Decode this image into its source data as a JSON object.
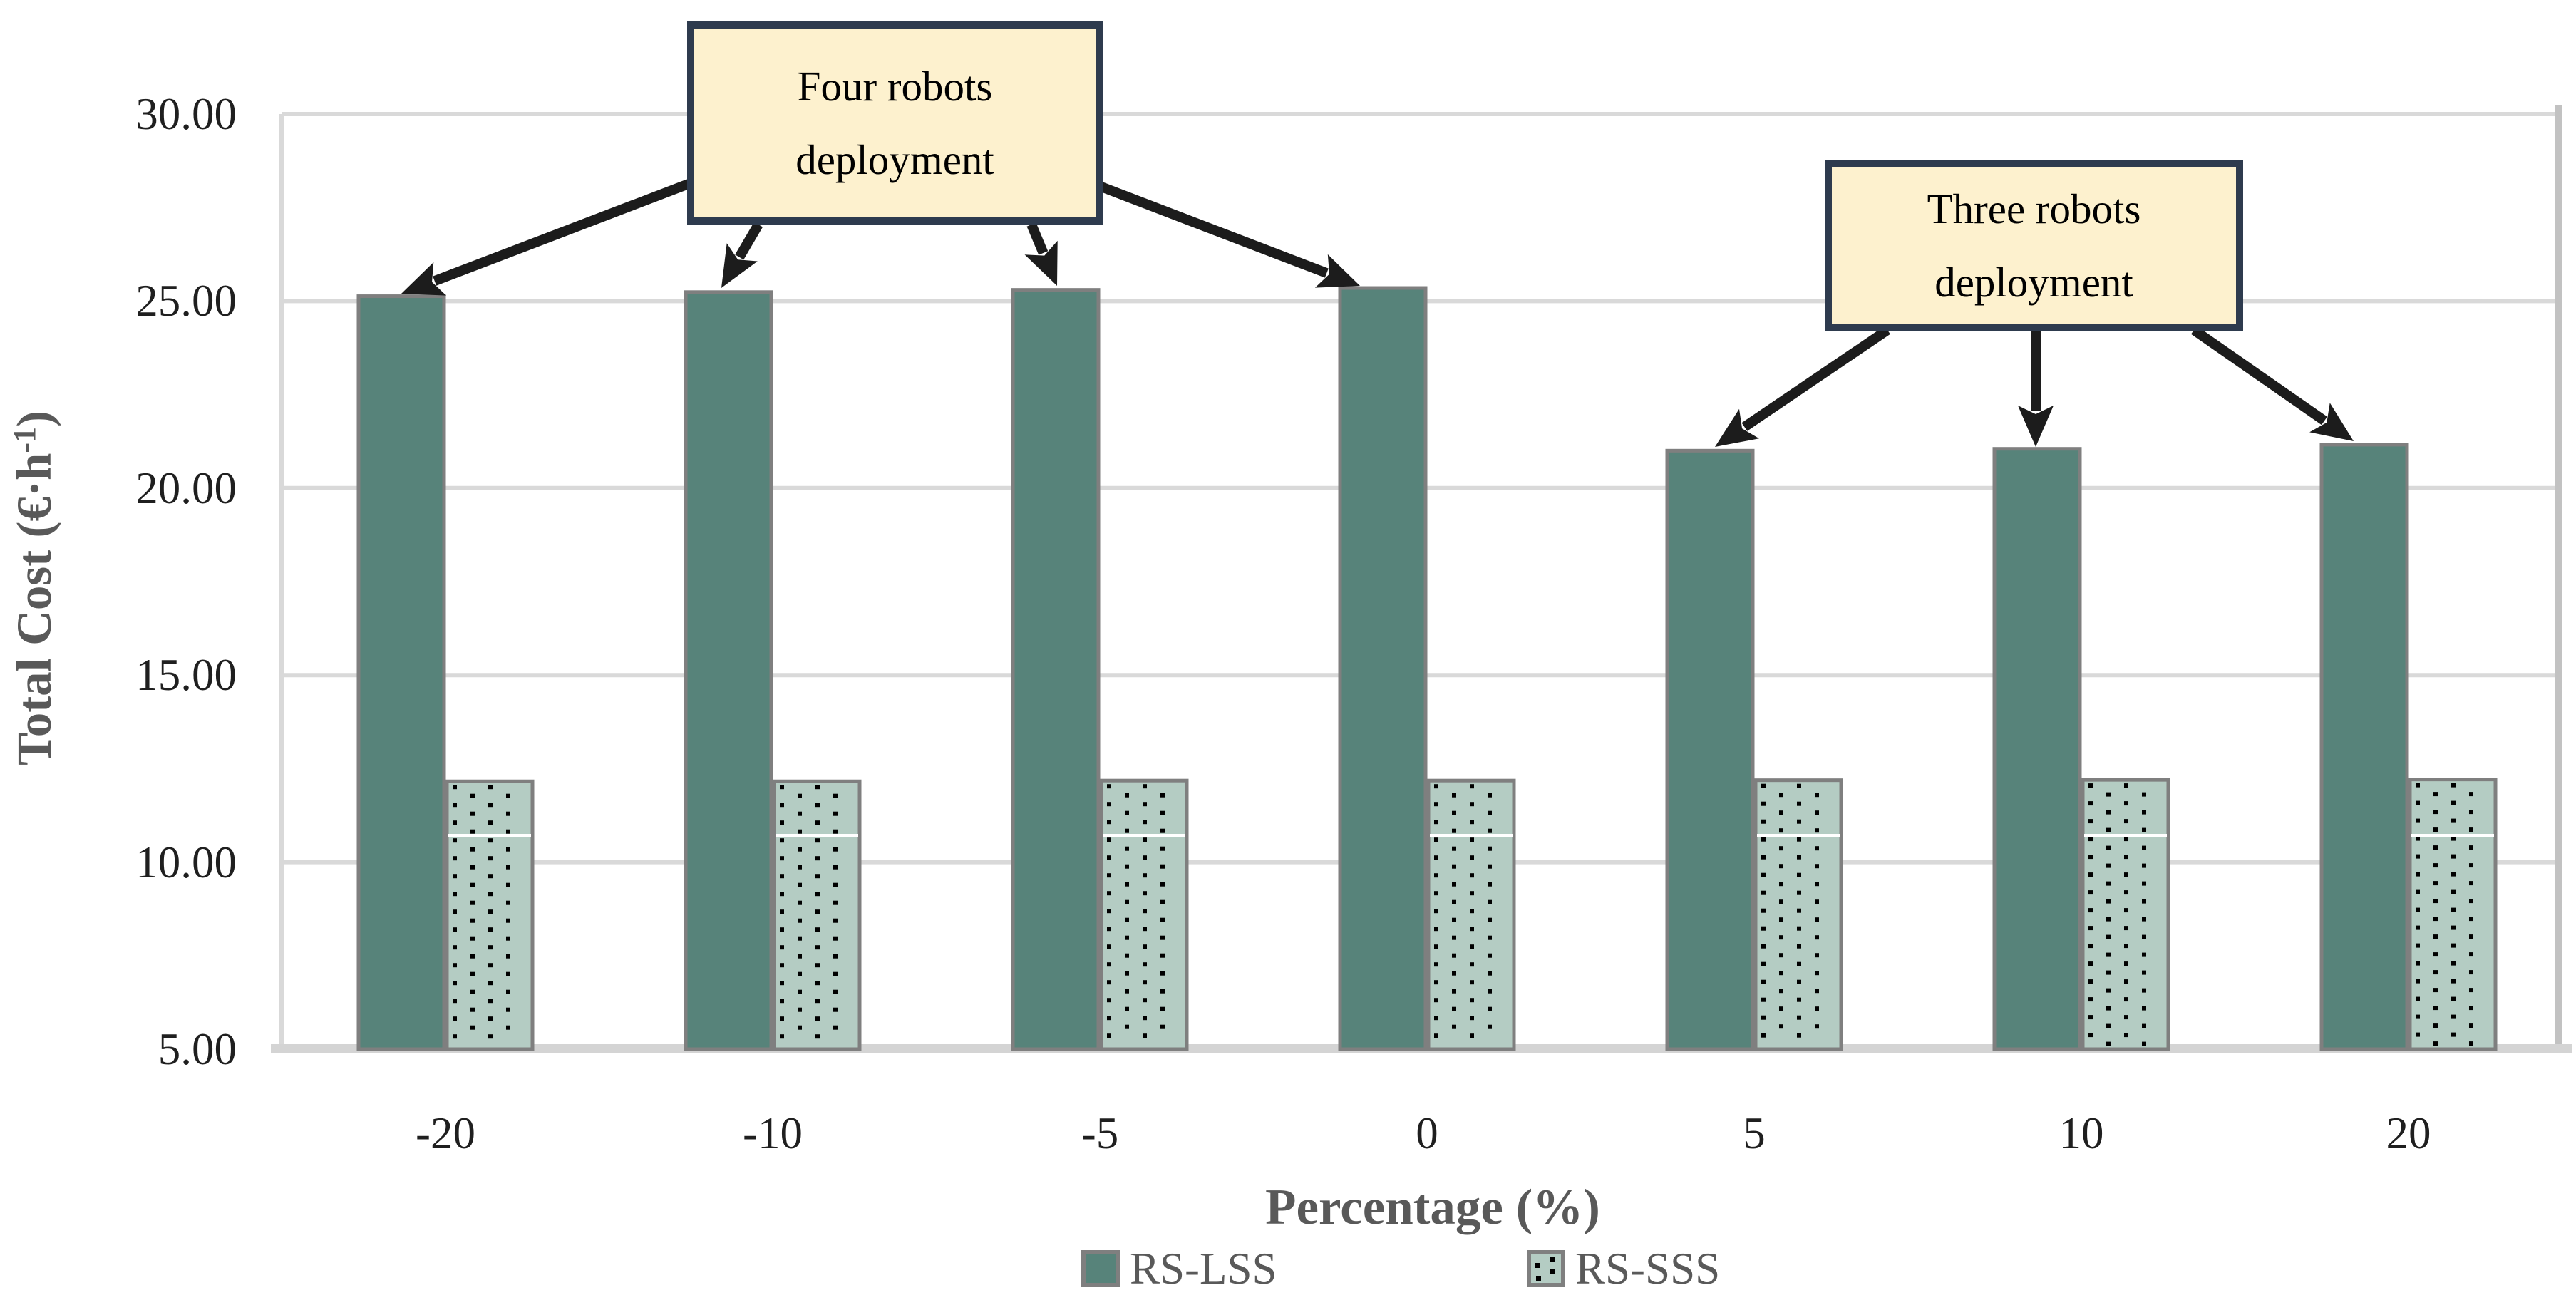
{
  "chart_data": {
    "type": "bar",
    "title": "",
    "categories": [
      -20,
      -10,
      -5,
      0,
      5,
      10,
      20
    ],
    "series": [
      {
        "name": "RS-LSS",
        "values": [
          25.13,
          25.24,
          25.3,
          25.35,
          21.0,
          21.05,
          21.16
        ],
        "style": "solid"
      },
      {
        "name": "RS-SSS",
        "values": [
          12.16,
          12.16,
          12.18,
          12.18,
          12.19,
          12.2,
          12.21
        ],
        "style": "dotted-pattern"
      }
    ],
    "xlabel": "Percentage (%)",
    "ylabel": "Total Cost (€·h⁻¹)",
    "ylabel_parts": {
      "main": "Total Cost (€·h",
      "sup": "-1",
      "end": ")"
    },
    "ylim": [
      5,
      30
    ],
    "ytick_step": 5,
    "ytick_labels": [
      "5.00",
      "10.00",
      "15.00",
      "20.00",
      "25.00",
      "30.00"
    ],
    "grid": true,
    "legend_position": "bottom"
  },
  "annotations": [
    {
      "line1": "Four robots",
      "line2": "deployment",
      "target_categories": [
        -20,
        -10,
        -5,
        0
      ]
    },
    {
      "line1": "Three robots",
      "line2": "deployment",
      "target_categories": [
        5,
        10,
        20
      ]
    }
  ],
  "colors": {
    "bar_solid": "#57837A",
    "bar_pattern_bg": "#B4CCC3",
    "bar_pattern_dot": "#000000",
    "bar_border": "#7F7F7F",
    "gridline": "#D9D9D9",
    "axis_line": "#D4D4D4",
    "tick_text": "#1F1F1F",
    "axis_title_text": "#595959",
    "annotation_fill": "#FDF1CE",
    "annotation_border": "#2E3B4E",
    "arrow": "#1C1C1C"
  }
}
